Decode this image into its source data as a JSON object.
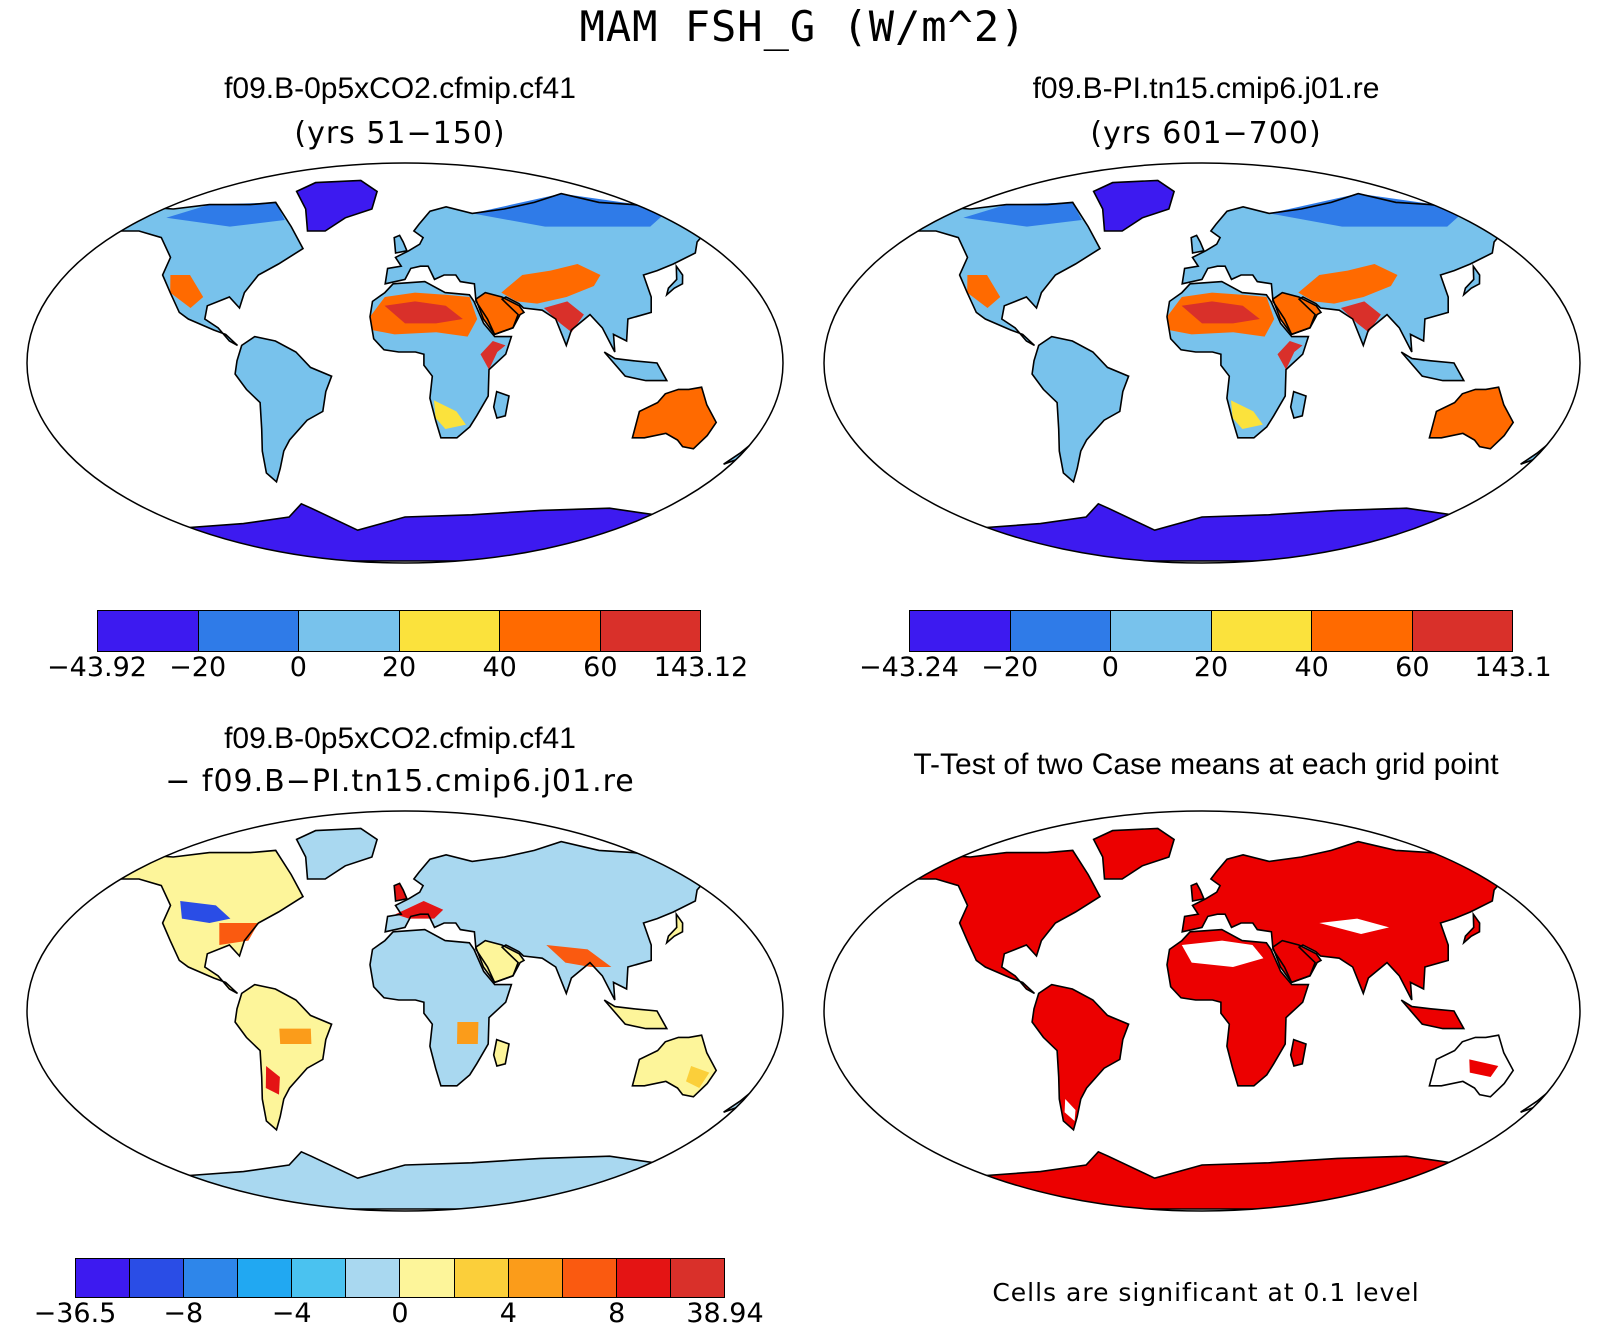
{
  "figure": {
    "title": "MAM FSH_G (W/m^2)"
  },
  "panels": [
    {
      "id": "top-left",
      "title": "f09.B-0p5xCO2.cfmip.cf41",
      "subtitle": "(yrs 51−150)",
      "colorbar": {
        "colors": [
          "#3d1af0",
          "#2f7be8",
          "#78c2ec",
          "#fbe23c",
          "#ff6a00",
          "#d9302a"
        ],
        "labels": [
          "−43.92",
          "−20",
          "0",
          "20",
          "40",
          "60",
          "143.12"
        ]
      }
    },
    {
      "id": "top-right",
      "title": "f09.B-PI.tn15.cmip6.j01.re",
      "subtitle": "(yrs 601−700)",
      "colorbar": {
        "colors": [
          "#3d1af0",
          "#2f7be8",
          "#78c2ec",
          "#fbe23c",
          "#ff6a00",
          "#d9302a"
        ],
        "labels": [
          "−43.24",
          "−20",
          "0",
          "20",
          "40",
          "60",
          "143.1"
        ]
      }
    },
    {
      "id": "bottom-left",
      "title": "f09.B-0p5xCO2.cfmip.cf41",
      "subtitle": "− f09.B−PI.tn15.cmip6.j01.re",
      "colorbar": {
        "colors": [
          "#3d1af0",
          "#2a4de6",
          "#2e86ea",
          "#21a8f2",
          "#4ac2f0",
          "#a9d8f0",
          "#fdf59a",
          "#fbcf3a",
          "#fb9c1a",
          "#fa5a10",
          "#e41414",
          "#d9302a"
        ],
        "labels": [
          "−36.5",
          "−8",
          "−4",
          "0",
          "4",
          "8",
          "38.94"
        ]
      }
    },
    {
      "id": "bottom-right",
      "title": "T-Test of two Case means at each grid point",
      "footnote": "Cells are significant at 0.1 level"
    }
  ]
}
